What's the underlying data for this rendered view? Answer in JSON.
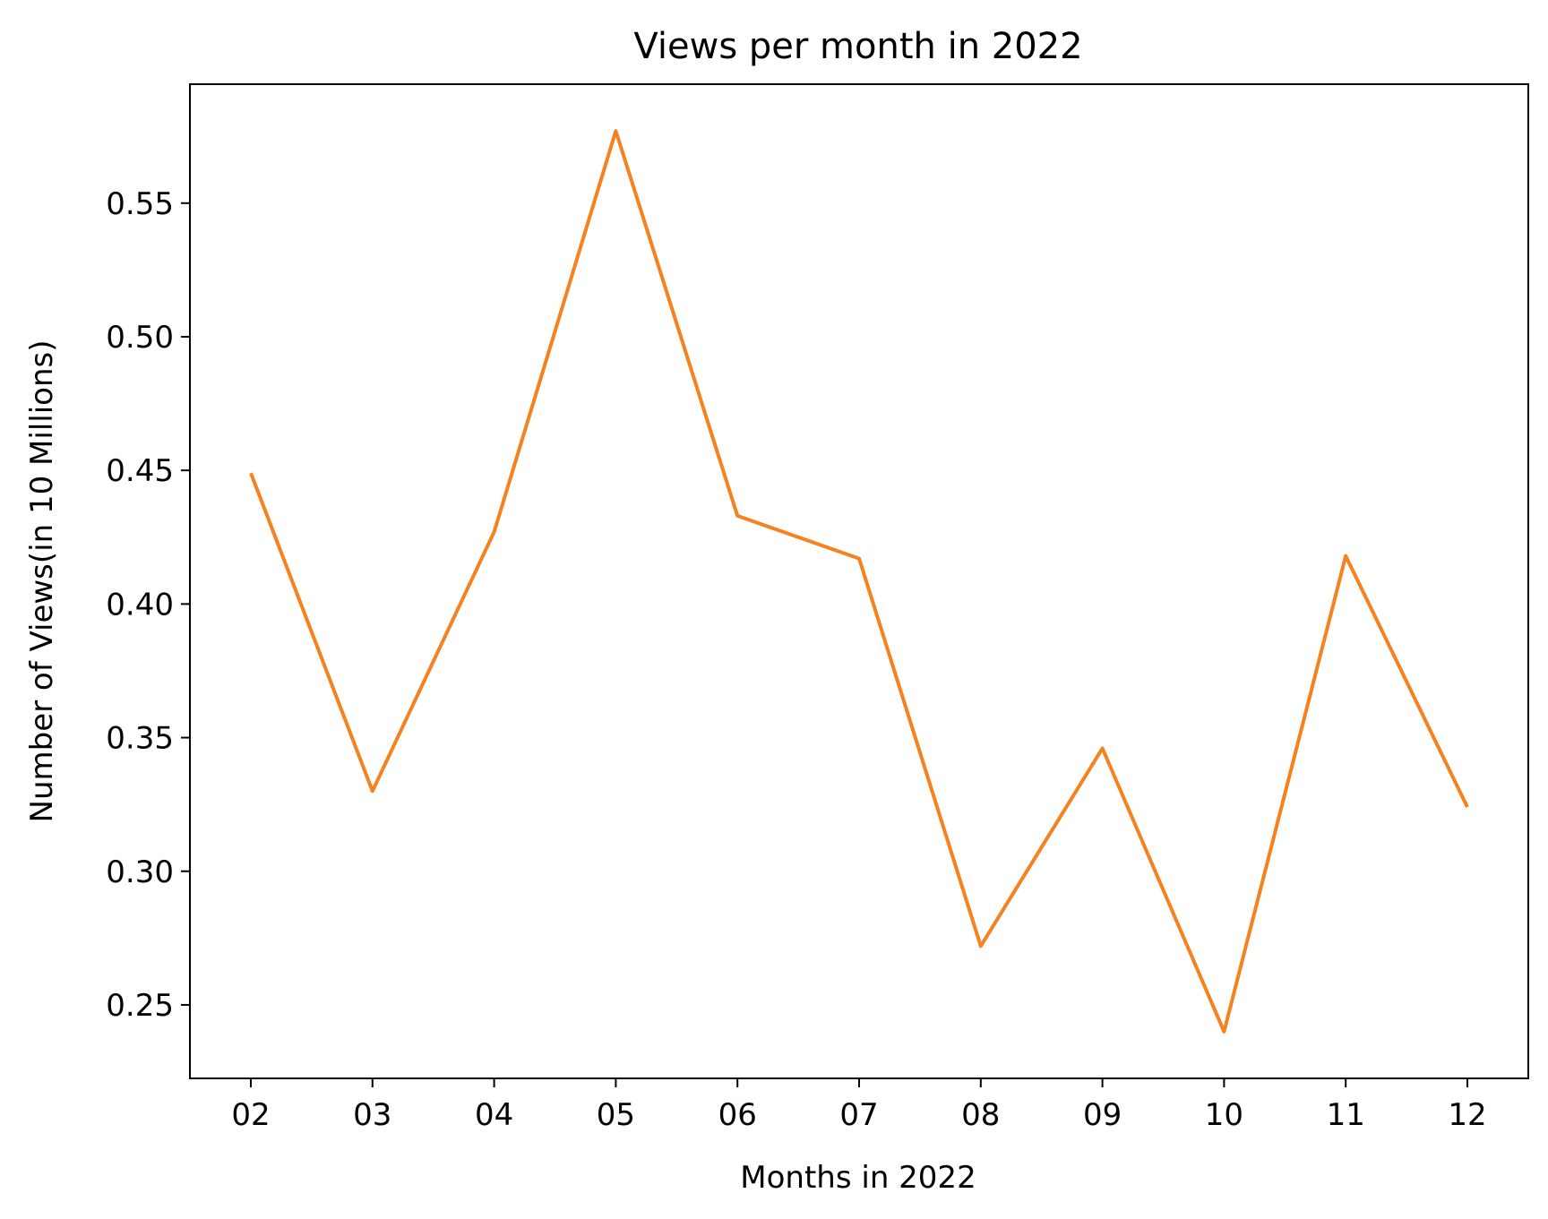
{
  "chart_data": {
    "type": "line",
    "title": "Views per month in 2022",
    "xlabel": "Months in 2022",
    "ylabel": "Number of Views(in 10 Millions)",
    "categories": [
      "02",
      "03",
      "04",
      "05",
      "06",
      "07",
      "08",
      "09",
      "10",
      "11",
      "12"
    ],
    "series": [
      {
        "values": [
          0.449,
          0.33,
          0.427,
          0.577,
          0.433,
          0.417,
          0.272,
          0.346,
          0.24,
          0.418,
          0.324
        ],
        "color": "#f5821f"
      }
    ],
    "yticks": [
      0.25,
      0.3,
      0.35,
      0.4,
      0.45,
      0.5,
      0.55
    ],
    "ytick_labels": [
      "0.25",
      "0.30",
      "0.35",
      "0.40",
      "0.45",
      "0.50",
      "0.55"
    ],
    "ylim": [
      0.2225,
      0.5945
    ],
    "grid": false,
    "legend": "none"
  }
}
